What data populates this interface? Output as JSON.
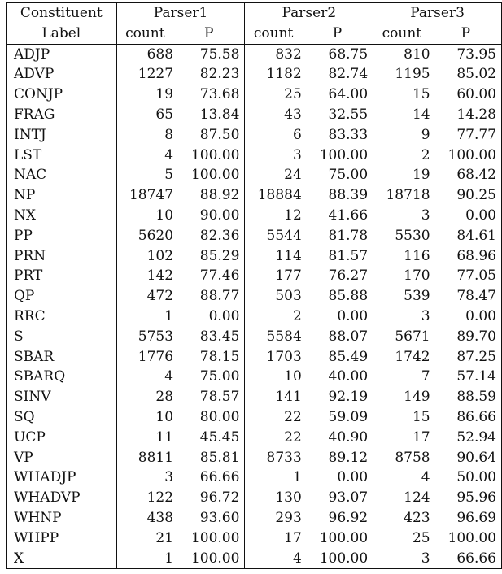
{
  "header": {
    "label_col_line1": "Constituent",
    "label_col_line2": "Label",
    "parsers": [
      "Parser1",
      "Parser2",
      "Parser3"
    ],
    "count_label": "count",
    "p_label": "P"
  },
  "rows": [
    {
      "label": "ADJP",
      "vals": [
        "688",
        "75.58",
        "832",
        "68.75",
        "810",
        "73.95"
      ]
    },
    {
      "label": "ADVP",
      "vals": [
        "1227",
        "82.23",
        "1182",
        "82.74",
        "1195",
        "85.02"
      ]
    },
    {
      "label": "CONJP",
      "vals": [
        "19",
        "73.68",
        "25",
        "64.00",
        "15",
        "60.00"
      ]
    },
    {
      "label": "FRAG",
      "vals": [
        "65",
        "13.84",
        "43",
        "32.55",
        "14",
        "14.28"
      ]
    },
    {
      "label": "INTJ",
      "vals": [
        "8",
        "87.50",
        "6",
        "83.33",
        "9",
        "77.77"
      ]
    },
    {
      "label": "LST",
      "vals": [
        "4",
        "100.00",
        "3",
        "100.00",
        "2",
        "100.00"
      ]
    },
    {
      "label": "NAC",
      "vals": [
        "5",
        "100.00",
        "24",
        "75.00",
        "19",
        "68.42"
      ]
    },
    {
      "label": "NP",
      "vals": [
        "18747",
        "88.92",
        "18884",
        "88.39",
        "18718",
        "90.25"
      ]
    },
    {
      "label": "NX",
      "vals": [
        "10",
        "90.00",
        "12",
        "41.66",
        "3",
        "0.00"
      ]
    },
    {
      "label": "PP",
      "vals": [
        "5620",
        "82.36",
        "5544",
        "81.78",
        "5530",
        "84.61"
      ]
    },
    {
      "label": "PRN",
      "vals": [
        "102",
        "85.29",
        "114",
        "81.57",
        "116",
        "68.96"
      ]
    },
    {
      "label": "PRT",
      "vals": [
        "142",
        "77.46",
        "177",
        "76.27",
        "170",
        "77.05"
      ]
    },
    {
      "label": "QP",
      "vals": [
        "472",
        "88.77",
        "503",
        "85.88",
        "539",
        "78.47"
      ]
    },
    {
      "label": "RRC",
      "vals": [
        "1",
        "0.00",
        "2",
        "0.00",
        "3",
        "0.00"
      ]
    },
    {
      "label": "S",
      "vals": [
        "5753",
        "83.45",
        "5584",
        "88.07",
        "5671",
        "89.70"
      ]
    },
    {
      "label": "SBAR",
      "vals": [
        "1776",
        "78.15",
        "1703",
        "85.49",
        "1742",
        "87.25"
      ]
    },
    {
      "label": "SBARQ",
      "vals": [
        "4",
        "75.00",
        "10",
        "40.00",
        "7",
        "57.14"
      ]
    },
    {
      "label": "SINV",
      "vals": [
        "28",
        "78.57",
        "141",
        "92.19",
        "149",
        "88.59"
      ]
    },
    {
      "label": "SQ",
      "vals": [
        "10",
        "80.00",
        "22",
        "59.09",
        "15",
        "86.66"
      ]
    },
    {
      "label": "UCP",
      "vals": [
        "11",
        "45.45",
        "22",
        "40.90",
        "17",
        "52.94"
      ]
    },
    {
      "label": "VP",
      "vals": [
        "8811",
        "85.81",
        "8733",
        "89.12",
        "8758",
        "90.64"
      ]
    },
    {
      "label": "WHADJP",
      "vals": [
        "3",
        "66.66",
        "1",
        "0.00",
        "4",
        "50.00"
      ]
    },
    {
      "label": "WHADVP",
      "vals": [
        "122",
        "96.72",
        "130",
        "93.07",
        "124",
        "95.96"
      ]
    },
    {
      "label": "WHNP",
      "vals": [
        "438",
        "93.60",
        "293",
        "96.92",
        "423",
        "96.69"
      ]
    },
    {
      "label": "WHPP",
      "vals": [
        "21",
        "100.00",
        "17",
        "100.00",
        "25",
        "100.00"
      ]
    },
    {
      "label": "X",
      "vals": [
        "1",
        "100.00",
        "4",
        "100.00",
        "3",
        "66.66"
      ]
    }
  ]
}
